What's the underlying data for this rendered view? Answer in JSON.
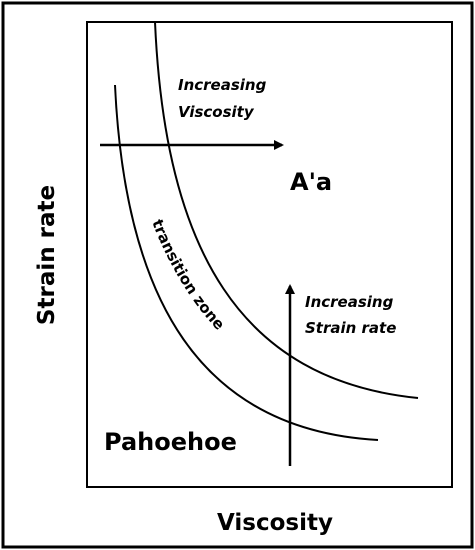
{
  "axes": {
    "x_label": "Viscosity",
    "y_label": "Strain rate"
  },
  "regions": {
    "upper": "A'a",
    "lower": "Pahoehoe",
    "between_curves": "transition zone"
  },
  "annotations": {
    "viscosity_arrow": [
      "Increasing",
      "Viscosity"
    ],
    "strain_arrow": [
      "Increasing",
      "Strain rate"
    ]
  }
}
